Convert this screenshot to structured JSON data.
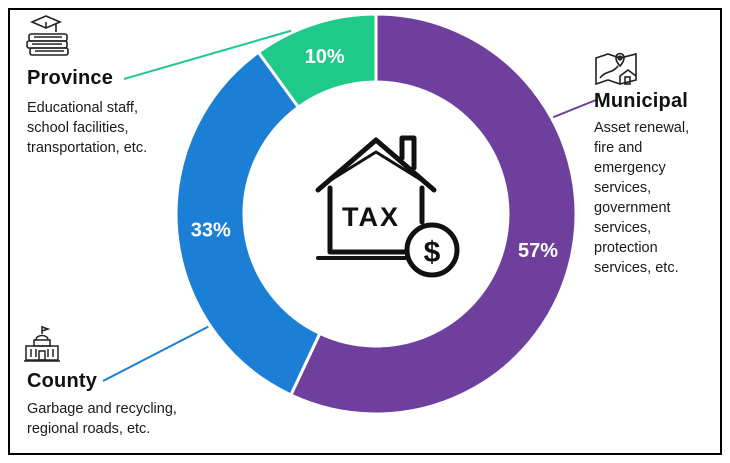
{
  "chart_data": {
    "type": "pie",
    "donut": true,
    "slices": [
      {
        "label": "Municipal",
        "value": 57,
        "display": "57%",
        "color": "#6f3f9e"
      },
      {
        "label": "County",
        "value": 33,
        "display": "33%",
        "color": "#1c7fd6"
      },
      {
        "label": "Province",
        "value": 10,
        "display": "10%",
        "color": "#1ec98a"
      }
    ],
    "center_icon": "house-tax-dollar-icon",
    "center_text": "TAX",
    "center_symbol": "$"
  },
  "labels": {
    "province": {
      "title": "Province",
      "lines": [
        "Educational staff,",
        "school facilities,",
        "transportation, etc."
      ],
      "icon": "school-books-icon",
      "color": "#1ec98a"
    },
    "municipal": {
      "title": "Municipal",
      "lines": [
        "Asset renewal,",
        "fire and",
        "emergency",
        "services,",
        "government",
        "services,",
        "protection",
        "services, etc."
      ],
      "icon": "map-house-icon",
      "color": "#6f3f9e"
    },
    "county": {
      "title": "County",
      "lines": [
        "Garbage and recycling,",
        "regional roads, etc."
      ],
      "icon": "city-hall-icon",
      "color": "#1c7fd6"
    }
  }
}
